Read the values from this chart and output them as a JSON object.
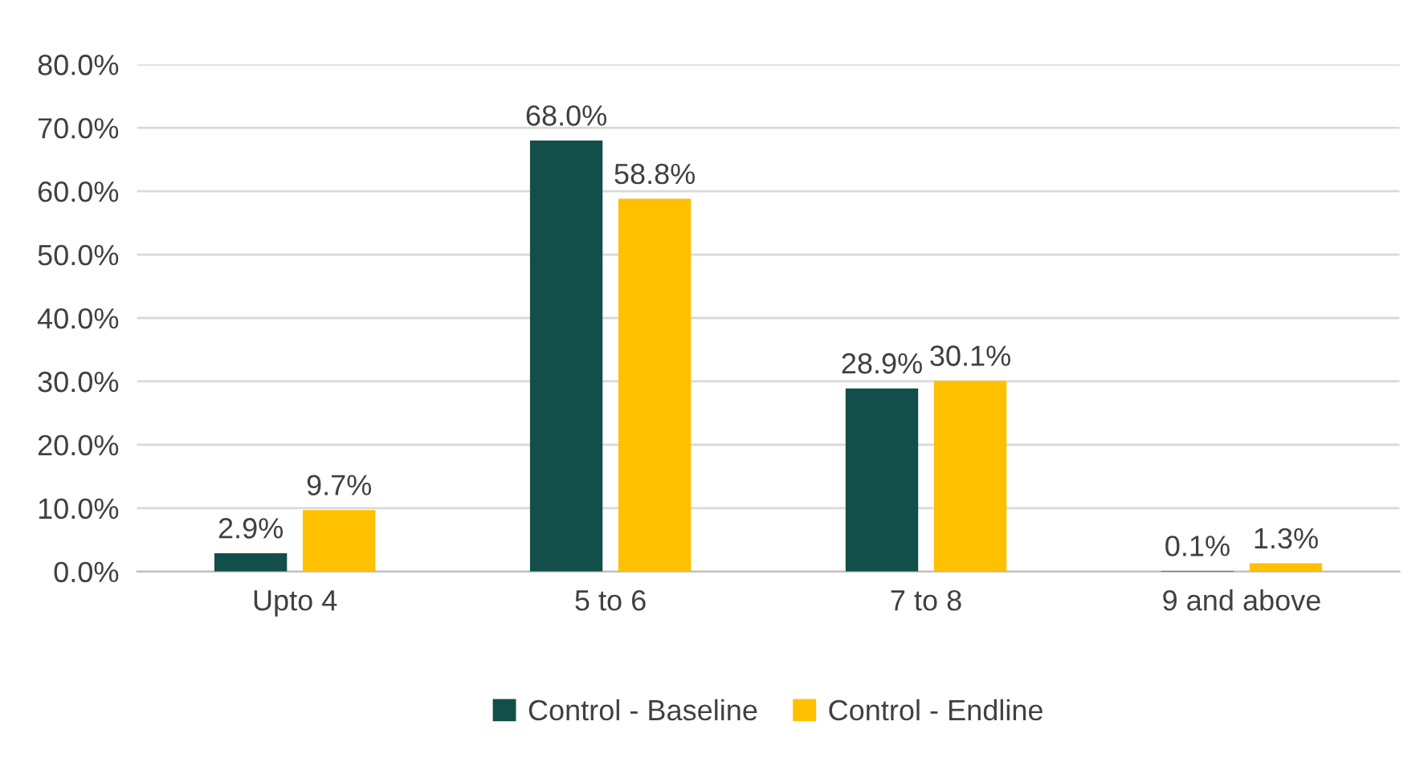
{
  "chart_data": {
    "type": "bar",
    "categories": [
      "Upto 4",
      "5 to 6",
      "7 to 8",
      "9 and above"
    ],
    "series": [
      {
        "name": "Control - Baseline",
        "color": "#124f4a",
        "values": [
          2.9,
          68.0,
          28.9,
          0.1
        ],
        "value_labels": [
          "2.9%",
          "68.0%",
          "28.9%",
          "0.1%"
        ]
      },
      {
        "name": "Control - Endline",
        "color": "#ffc000",
        "values": [
          9.7,
          58.8,
          30.1,
          1.3
        ],
        "value_labels": [
          "9.7%",
          "58.8%",
          "30.1%",
          "1.3%"
        ]
      }
    ],
    "ylim": [
      0,
      80
    ],
    "yticks": [
      {
        "value": 0,
        "label": "0.0%"
      },
      {
        "value": 10,
        "label": "10.0%"
      },
      {
        "value": 20,
        "label": "20.0%"
      },
      {
        "value": 30,
        "label": "30.0%"
      },
      {
        "value": 40,
        "label": "40.0%"
      },
      {
        "value": 50,
        "label": "50.0%"
      },
      {
        "value": 60,
        "label": "60.0%"
      },
      {
        "value": 70,
        "label": "70.0%"
      },
      {
        "value": 80,
        "label": "80.0%"
      }
    ],
    "grid": "y",
    "legend": "bottom"
  }
}
